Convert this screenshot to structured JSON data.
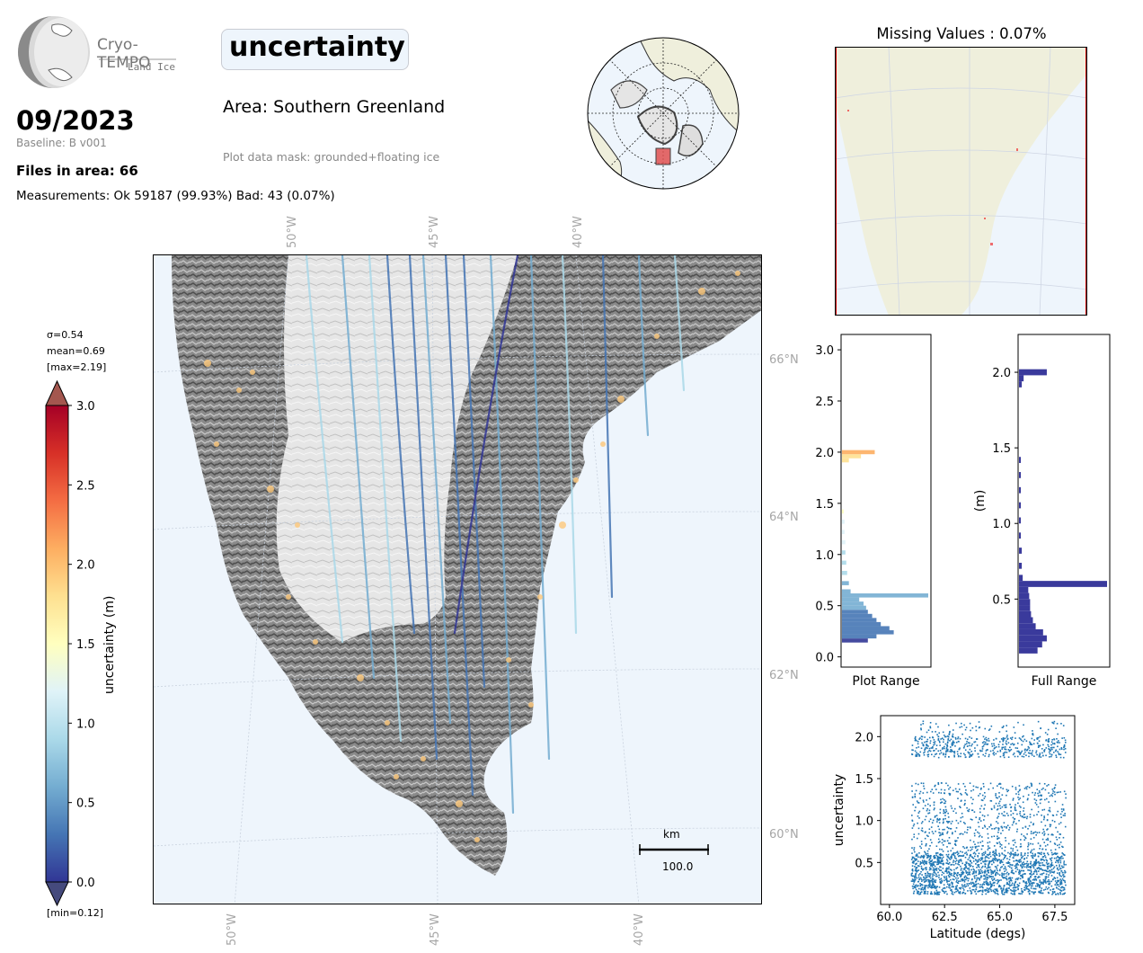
{
  "header": {
    "logo_name": "Cryo-TEMPO",
    "logo_sub": "Land Ice",
    "date": "09/2023",
    "baseline": "Baseline: B v001",
    "files": "Files in area: 66",
    "measurements": "Measurements: Ok 59187 (99.93%) Bad: 43 (0.07%)",
    "title": "uncertainty",
    "area": "Area: Southern Greenland",
    "mask": "Plot data mask: grounded+floating ice"
  },
  "colorbar": {
    "sigma": "σ=0.54",
    "mean": "mean=0.69",
    "max": "[max=2.19]",
    "min": "[min=0.12]",
    "label": "uncertainty (m)",
    "ticks": [
      "0.0",
      "0.5",
      "1.0",
      "1.5",
      "2.0",
      "2.5",
      "3.0"
    ],
    "range": [
      0,
      3.0
    ],
    "colors": [
      "#313695",
      "#4575b4",
      "#74add1",
      "#abd9e9",
      "#e0f3f8",
      "#ffffbf",
      "#fee090",
      "#fdae61",
      "#f46d43",
      "#d73027",
      "#a50026"
    ]
  },
  "map": {
    "lon_labels_top": [
      "50°W",
      "45°W",
      "40°W"
    ],
    "lon_labels_bottom": [
      "50°W",
      "45°W",
      "40°W"
    ],
    "lat_labels": [
      "66°N",
      "64°N",
      "62°N",
      "60°N"
    ],
    "scalebar_unit": "km",
    "scalebar_value": "100.0"
  },
  "missing": {
    "title": "Missing Values : 0.07%"
  },
  "chart_data": [
    {
      "type": "bar",
      "orientation": "horizontal",
      "xlabel": "Plot Range",
      "ylabel": "",
      "ylim": [
        -0.1,
        3.15
      ],
      "yticks": [
        "0.0",
        "0.5",
        "1.0",
        "1.5",
        "2.0",
        "2.5",
        "3.0"
      ],
      "bins": [
        0.14,
        0.18,
        0.22,
        0.26,
        0.3,
        0.34,
        0.38,
        0.42,
        0.46,
        0.5,
        0.54,
        0.58,
        0.62,
        0.7,
        0.8,
        0.9,
        1.0,
        1.1,
        1.2,
        1.3,
        1.4,
        1.9,
        1.94,
        1.98
      ],
      "values": [
        30,
        40,
        60,
        55,
        45,
        40,
        35,
        30,
        28,
        25,
        20,
        100,
        10,
        8,
        6,
        5,
        4,
        4,
        3,
        3,
        2,
        8,
        22,
        38
      ]
    },
    {
      "type": "bar",
      "orientation": "horizontal",
      "xlabel": "Full Range",
      "ylabel": "(m)",
      "ylim": [
        0.05,
        2.25
      ],
      "yticks": [
        "0.5",
        "1.0",
        "1.5",
        "2.0"
      ],
      "bins": [
        0.14,
        0.18,
        0.22,
        0.26,
        0.3,
        0.34,
        0.38,
        0.42,
        0.46,
        0.5,
        0.54,
        0.58,
        0.62,
        0.7,
        0.8,
        0.9,
        1.0,
        1.1,
        1.2,
        1.3,
        1.4,
        1.9,
        1.94,
        1.98
      ],
      "values": [
        20,
        25,
        30,
        26,
        18,
        15,
        13,
        12,
        12,
        11,
        10,
        95,
        4,
        3,
        3,
        2,
        2,
        2,
        2,
        2,
        2,
        3,
        5,
        30
      ]
    },
    {
      "type": "scatter",
      "xlabel": "Latitude (degs)",
      "ylabel": "uncertainty",
      "xlim": [
        59.6,
        68.4
      ],
      "ylim": [
        0.0,
        2.25
      ],
      "xticks": [
        "60.0",
        "62.5",
        "65.0",
        "67.5"
      ],
      "yticks": [
        "0.5",
        "1.0",
        "1.5",
        "2.0"
      ],
      "x_range": [
        61.0,
        68.0
      ],
      "bands": [
        {
          "y_min": 0.12,
          "y_max": 0.62,
          "density": "very high"
        },
        {
          "y_min": 0.62,
          "y_max": 1.45,
          "density": "high"
        },
        {
          "y_min": 1.75,
          "y_max": 2.0,
          "density": "medium"
        },
        {
          "y_min": 2.0,
          "y_max": 2.19,
          "density": "low"
        }
      ]
    }
  ]
}
